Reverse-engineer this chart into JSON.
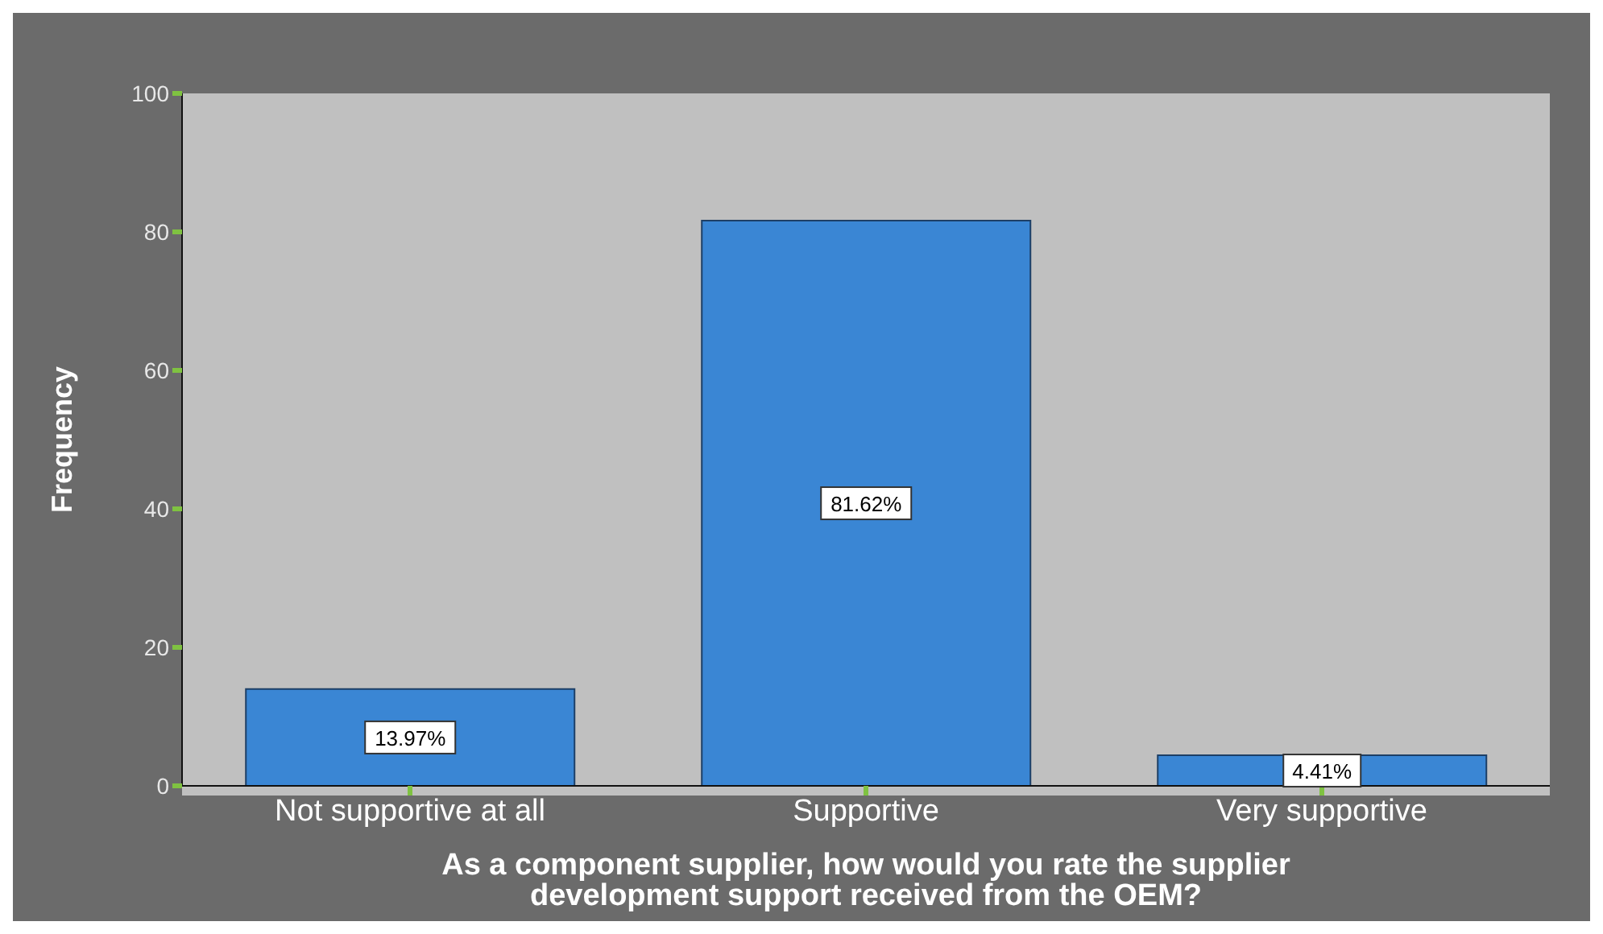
{
  "chart_data": {
    "type": "bar",
    "xlabel": "As a component supplier, how would you rate the supplier development support received from the OEM?",
    "ylabel": "Frequency",
    "categories": [
      "Not supportive at all",
      "Supportive",
      "Very supportive"
    ],
    "values": [
      13.97,
      81.62,
      4.41
    ],
    "value_labels": [
      "13.97%",
      "81.62%",
      "4.41%"
    ],
    "color": "#3a86d4",
    "ylim": [
      0,
      100
    ],
    "yticks": [
      0,
      20,
      40,
      60,
      80,
      100
    ]
  }
}
